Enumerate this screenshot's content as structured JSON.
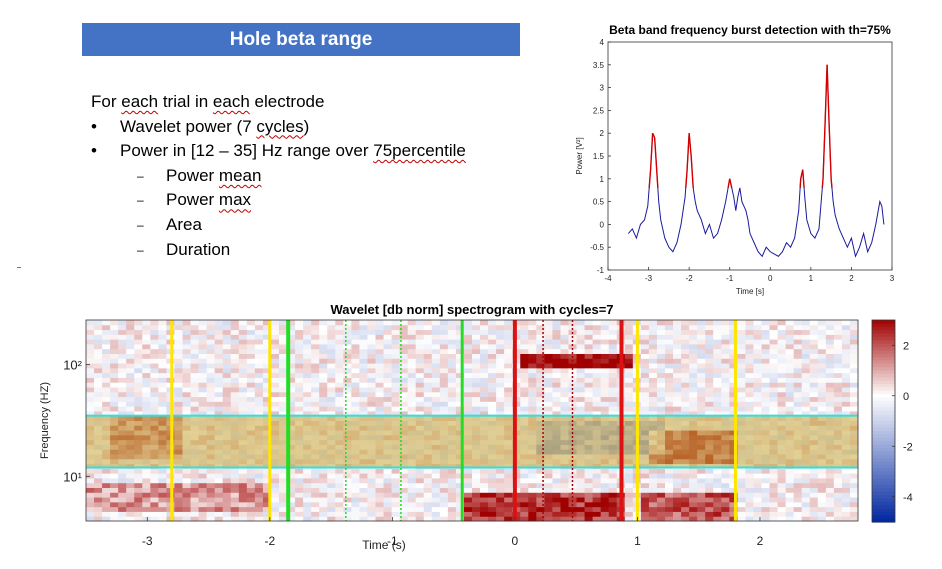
{
  "slide": {
    "title": "Hole beta range",
    "intro": "For each trial in each electrode",
    "bullets": [
      {
        "level": 1,
        "marker": "•",
        "text": "Wavelet power (7 cycles)"
      },
      {
        "level": 1,
        "marker": "•",
        "text": "Power in [12 – 35] Hz range over 75percentile"
      },
      {
        "level": 2,
        "marker": "‒",
        "text": "Power mean"
      },
      {
        "level": 2,
        "marker": "‒",
        "text": "Power max"
      },
      {
        "level": 2,
        "marker": "‒",
        "text": "Area"
      },
      {
        "level": 2,
        "marker": "‒",
        "text": "Duration"
      }
    ]
  },
  "chart_data": [
    {
      "type": "line",
      "title": "Beta band frequency burst detection with th=75%",
      "xlabel": "Time [s]",
      "ylabel": "Power [V²]",
      "xlim": [
        -4,
        3
      ],
      "ylim": [
        -1,
        4
      ],
      "xticks": [
        "-4",
        "-3",
        "-2",
        "-1",
        "0",
        "1",
        "2",
        "3"
      ],
      "yticks": [
        "-1",
        "-0.5",
        "0",
        "0.5",
        "1",
        "1.5",
        "2",
        "2.5",
        "3",
        "3.5",
        "4"
      ],
      "threshold": 0.8,
      "colors": {
        "signal": "#1a1a9e",
        "burst": "#d40000"
      },
      "series": [
        {
          "x": [
            -3.5,
            -3.4,
            -3.3,
            -3.2,
            -3.1,
            -3.02,
            -2.95,
            -2.9,
            -2.85,
            -2.8,
            -2.75,
            -2.7,
            -2.6,
            -2.5,
            -2.4,
            -2.3,
            -2.2,
            -2.1,
            -2.05,
            -2.0,
            -1.95,
            -1.9,
            -1.85,
            -1.8,
            -1.7,
            -1.6,
            -1.5,
            -1.4,
            -1.3,
            -1.2,
            -1.1,
            -1.0,
            -0.95,
            -0.9,
            -0.85,
            -0.8,
            -0.75,
            -0.7,
            -0.6,
            -0.55,
            -0.5,
            -0.4,
            -0.3,
            -0.2,
            -0.1,
            0.0,
            0.1,
            0.2,
            0.3,
            0.4,
            0.5,
            0.6,
            0.7,
            0.75,
            0.8,
            0.85,
            0.9,
            1.0,
            1.1,
            1.2,
            1.3,
            1.35,
            1.4,
            1.45,
            1.5,
            1.55,
            1.6,
            1.7,
            1.8,
            1.9,
            2.0,
            2.1,
            2.2,
            2.3,
            2.4,
            2.5,
            2.6,
            2.7,
            2.75,
            2.8
          ],
          "y": [
            -0.2,
            -0.1,
            -0.3,
            0.0,
            0.1,
            0.4,
            1.2,
            2.0,
            1.9,
            1.2,
            0.5,
            0.1,
            -0.3,
            -0.5,
            -0.6,
            -0.4,
            0.0,
            0.6,
            1.2,
            2.0,
            1.5,
            0.8,
            0.5,
            0.3,
            0.1,
            -0.2,
            0.0,
            -0.3,
            -0.2,
            0.1,
            0.5,
            1.0,
            0.8,
            0.6,
            0.3,
            0.6,
            0.8,
            0.5,
            0.3,
            0.1,
            -0.2,
            -0.4,
            -0.6,
            -0.7,
            -0.5,
            -0.6,
            -0.65,
            -0.7,
            -0.6,
            -0.4,
            -0.5,
            -0.3,
            0.3,
            1.0,
            1.2,
            0.6,
            0.1,
            -0.2,
            -0.3,
            -0.1,
            1.0,
            2.2,
            3.5,
            2.2,
            1.0,
            0.5,
            0.2,
            -0.1,
            -0.3,
            -0.5,
            -0.3,
            -0.7,
            -0.5,
            -0.2,
            -0.6,
            -0.4,
            0.0,
            0.5,
            0.4,
            0.0
          ]
        }
      ]
    },
    {
      "type": "heatmap",
      "title": "Wavelet [db norm] spectrogram with cycles=7",
      "xlabel": "Time (s)",
      "ylabel": "Frequency (HZ)",
      "xlim": [
        -3.5,
        2.8
      ],
      "ylim_log10": [
        0.6,
        2.4
      ],
      "xticks": [
        "-3",
        "-2",
        "-1",
        "0",
        "1",
        "2"
      ],
      "yticks": [
        "10²",
        "10¹"
      ],
      "colorbar": {
        "range": [
          -5,
          3
        ],
        "ticks": [
          "2",
          "0",
          "-2",
          "-4"
        ]
      },
      "beta_band_hz": [
        12,
        35
      ],
      "beta_band_color": "#c8a83c",
      "hotspots": [
        {
          "t": [
            0.05,
            0.95
          ],
          "log10f": [
            1.95,
            2.12
          ],
          "db": 3
        },
        {
          "t": [
            -3.3,
            -2.7
          ],
          "log10f": [
            1.15,
            1.55
          ],
          "db": 1.5
        },
        {
          "t": [
            1.1,
            1.8
          ],
          "log10f": [
            1.1,
            1.4
          ],
          "db": 2
        },
        {
          "t": [
            -0.4,
            0.9
          ],
          "log10f": [
            0.62,
            0.85
          ],
          "db": 2.4
        },
        {
          "t": [
            -3.5,
            -2.0
          ],
          "log10f": [
            0.7,
            0.95
          ],
          "db": 1.2
        },
        {
          "t": [
            1.0,
            1.8
          ],
          "log10f": [
            0.6,
            0.85
          ],
          "db": 2
        },
        {
          "t": [
            0.2,
            1.2
          ],
          "log10f": [
            1.2,
            1.5
          ],
          "db": -1.6
        }
      ],
      "markers": [
        {
          "t": -2.8,
          "color": "#ffe600",
          "width": 3,
          "style": "solid"
        },
        {
          "t": -2.0,
          "color": "#ffe600",
          "width": 3,
          "style": "solid"
        },
        {
          "t": -1.85,
          "color": "#22dd22",
          "width": 4,
          "style": "solid"
        },
        {
          "t": -1.38,
          "color": "#22dd22",
          "width": 1.5,
          "style": "dotted"
        },
        {
          "t": -0.93,
          "color": "#22dd22",
          "width": 1.5,
          "style": "dotted"
        },
        {
          "t": -0.43,
          "color": "#22dd22",
          "width": 3,
          "style": "solid"
        },
        {
          "t": 0.0,
          "color": "#dd1111",
          "width": 4,
          "style": "solid"
        },
        {
          "t": 0.23,
          "color": "#aa0000",
          "width": 1.5,
          "style": "dotted"
        },
        {
          "t": 0.47,
          "color": "#aa0000",
          "width": 1.5,
          "style": "dotted"
        },
        {
          "t": 0.87,
          "color": "#dd1111",
          "width": 4,
          "style": "solid"
        },
        {
          "t": 1.0,
          "color": "#ffe600",
          "width": 3,
          "style": "solid"
        },
        {
          "t": 1.8,
          "color": "#ffe600",
          "width": 3,
          "style": "solid"
        }
      ]
    }
  ]
}
